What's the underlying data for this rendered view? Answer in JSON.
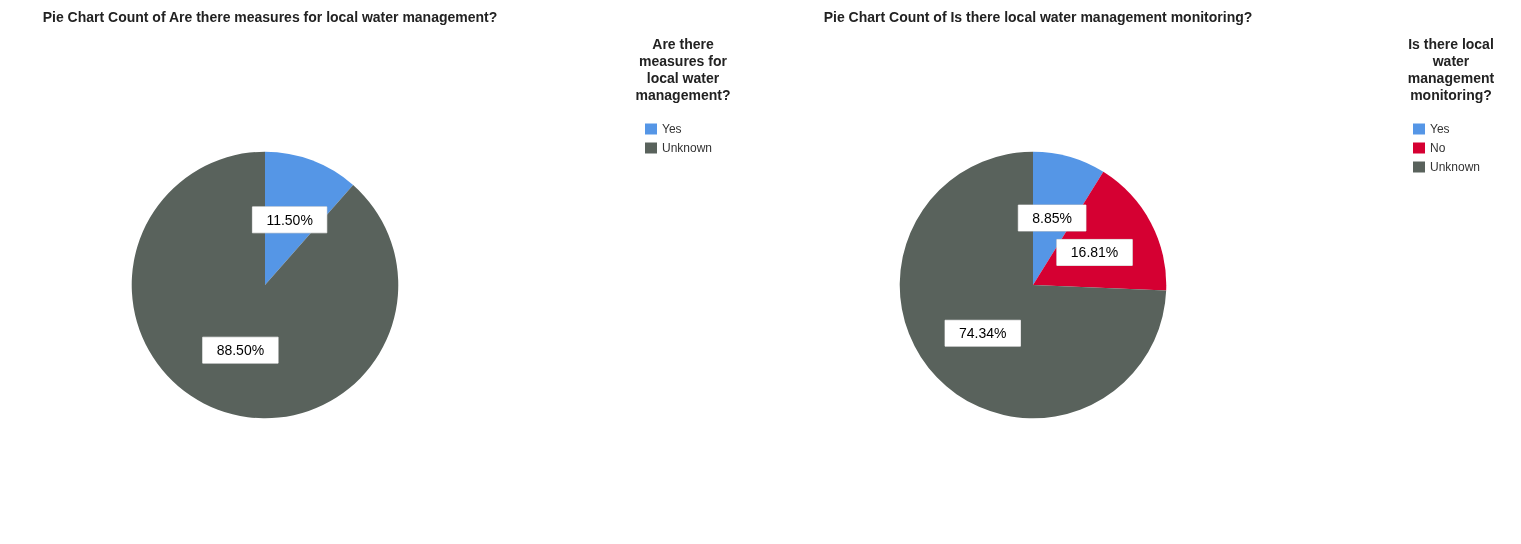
{
  "chart_data": [
    {
      "type": "pie",
      "title": "Pie Chart Count of Are there measures for local water management?",
      "legend_title": "Are there\nmeasures for\nlocal water\nmanagement?",
      "categories": [
        "Yes",
        "Unknown"
      ],
      "values": [
        11.5,
        88.5
      ],
      "colors": [
        "#5596e6",
        "#59625c"
      ],
      "value_labels": [
        "11.50%",
        "88.50%"
      ],
      "legend": "top right"
    },
    {
      "type": "pie",
      "title": "Pie Chart Count of Is there local water management monitoring?",
      "legend_title": "Is there local\nwater\nmanagement\nmonitoring?",
      "categories": [
        "Yes",
        "No",
        "Unknown"
      ],
      "values": [
        8.85,
        16.81,
        74.34
      ],
      "colors": [
        "#5596e6",
        "#d50032",
        "#59625c"
      ],
      "value_labels": [
        "8.85%",
        "16.81%",
        "74.34%"
      ],
      "legend": "top right"
    }
  ]
}
